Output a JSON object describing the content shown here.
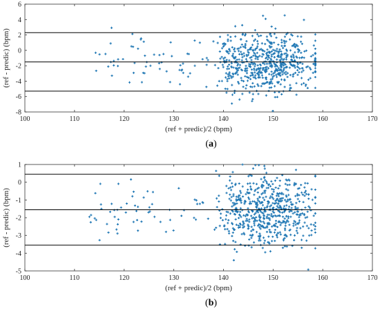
{
  "chart_data": [
    {
      "type": "scatter",
      "caption": {
        "open": "(",
        "label": "a",
        "close": ")"
      },
      "xlabel": "(ref + predic)/2 (bpm)",
      "ylabel": "(ref - predic) (bpm)",
      "xlim": [
        100,
        170
      ],
      "ylim": [
        -8,
        6
      ],
      "xticks": [
        "100",
        "110",
        "120",
        "130",
        "140",
        "150",
        "160",
        "170"
      ],
      "yticks": [
        "-8",
        "-6",
        "-4",
        "-2",
        "0",
        "2",
        "4",
        "6"
      ],
      "grid": false,
      "marker": "plus",
      "point_color": "#1f77b4",
      "hlines": [
        2.3,
        -1.5,
        -5.3
      ],
      "seed": 7
    },
    {
      "type": "scatter",
      "caption": {
        "open": "(",
        "label": "b",
        "close": ")"
      },
      "xlabel": "(ref + predic)/2 (bpm)",
      "ylabel": "(ref - predic) (bpm)",
      "xlim": [
        100,
        170
      ],
      "ylim": [
        -5,
        1
      ],
      "xticks": [
        "100",
        "110",
        "120",
        "130",
        "140",
        "150",
        "160",
        "170"
      ],
      "yticks": [
        "-5",
        "-4",
        "-3",
        "-2",
        "-1",
        "0",
        "1"
      ],
      "grid": false,
      "marker": "plus",
      "point_color": "#1f77b4",
      "hlines": [
        0.45,
        -1.55,
        -3.55
      ],
      "seed": 19
    }
  ]
}
